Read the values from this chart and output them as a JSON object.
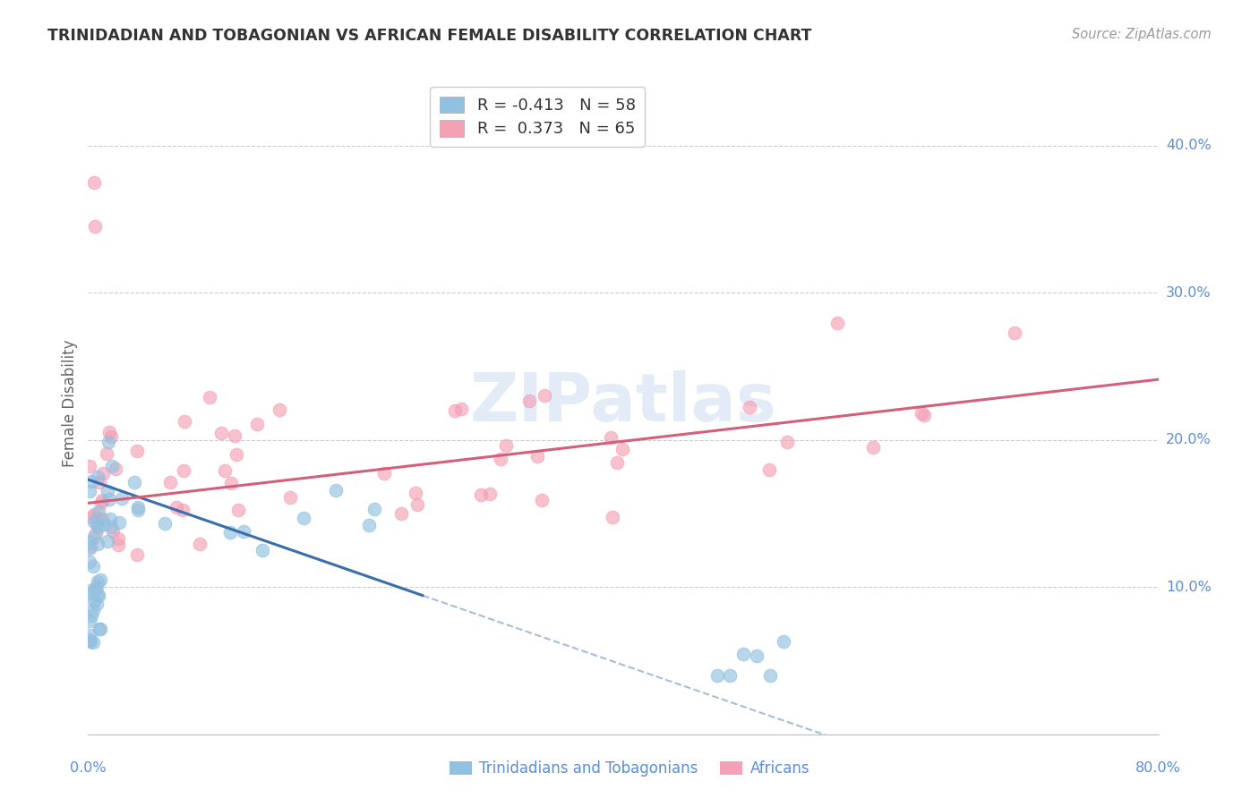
{
  "title": "TRINIDADIAN AND TOBAGONIAN VS AFRICAN FEMALE DISABILITY CORRELATION CHART",
  "source": "Source: ZipAtlas.com",
  "ylabel": "Female Disability",
  "ytick_labels": [
    "10.0%",
    "20.0%",
    "30.0%",
    "40.0%"
  ],
  "ytick_values": [
    0.1,
    0.2,
    0.3,
    0.4
  ],
  "xlim": [
    0.0,
    0.8
  ],
  "ylim": [
    0.0,
    0.45
  ],
  "color_blue": "#92c0e0",
  "color_pink": "#f4a0b5",
  "color_blue_line": "#3a6eaa",
  "color_pink_line": "#d45f7a",
  "color_axis_labels": "#5b8dd9",
  "watermark": "ZIPatlas",
  "legend_label1": "R = -0.413   N = 58",
  "legend_label2": "R =  0.373   N = 65",
  "bottom_label1": "Trinidadians and Tobagonians",
  "bottom_label2": "Africans"
}
